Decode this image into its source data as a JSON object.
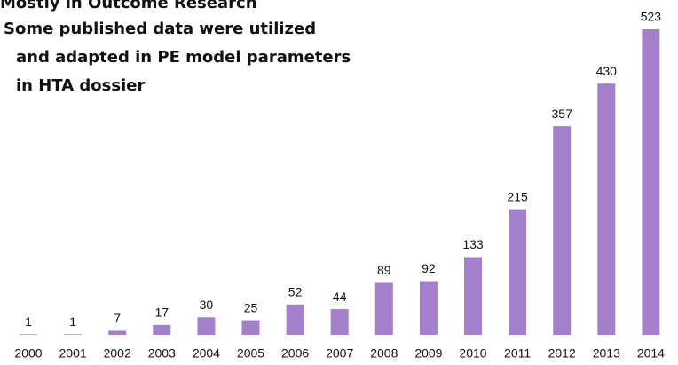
{
  "chart_data": {
    "type": "bar",
    "annotations": [
      "Mostly in Outcome Research",
      "Some published data were utilized",
      "and adapted in PE model parameters",
      "in HTA dossier"
    ],
    "categories": [
      "2000",
      "2001",
      "2002",
      "2003",
      "2004",
      "2005",
      "2006",
      "2007",
      "2008",
      "2009",
      "2010",
      "2011",
      "2012",
      "2013",
      "2014"
    ],
    "values": [
      1,
      1,
      7,
      17,
      30,
      25,
      52,
      44,
      89,
      92,
      133,
      215,
      357,
      430,
      523
    ],
    "color": "#a47fcc"
  }
}
